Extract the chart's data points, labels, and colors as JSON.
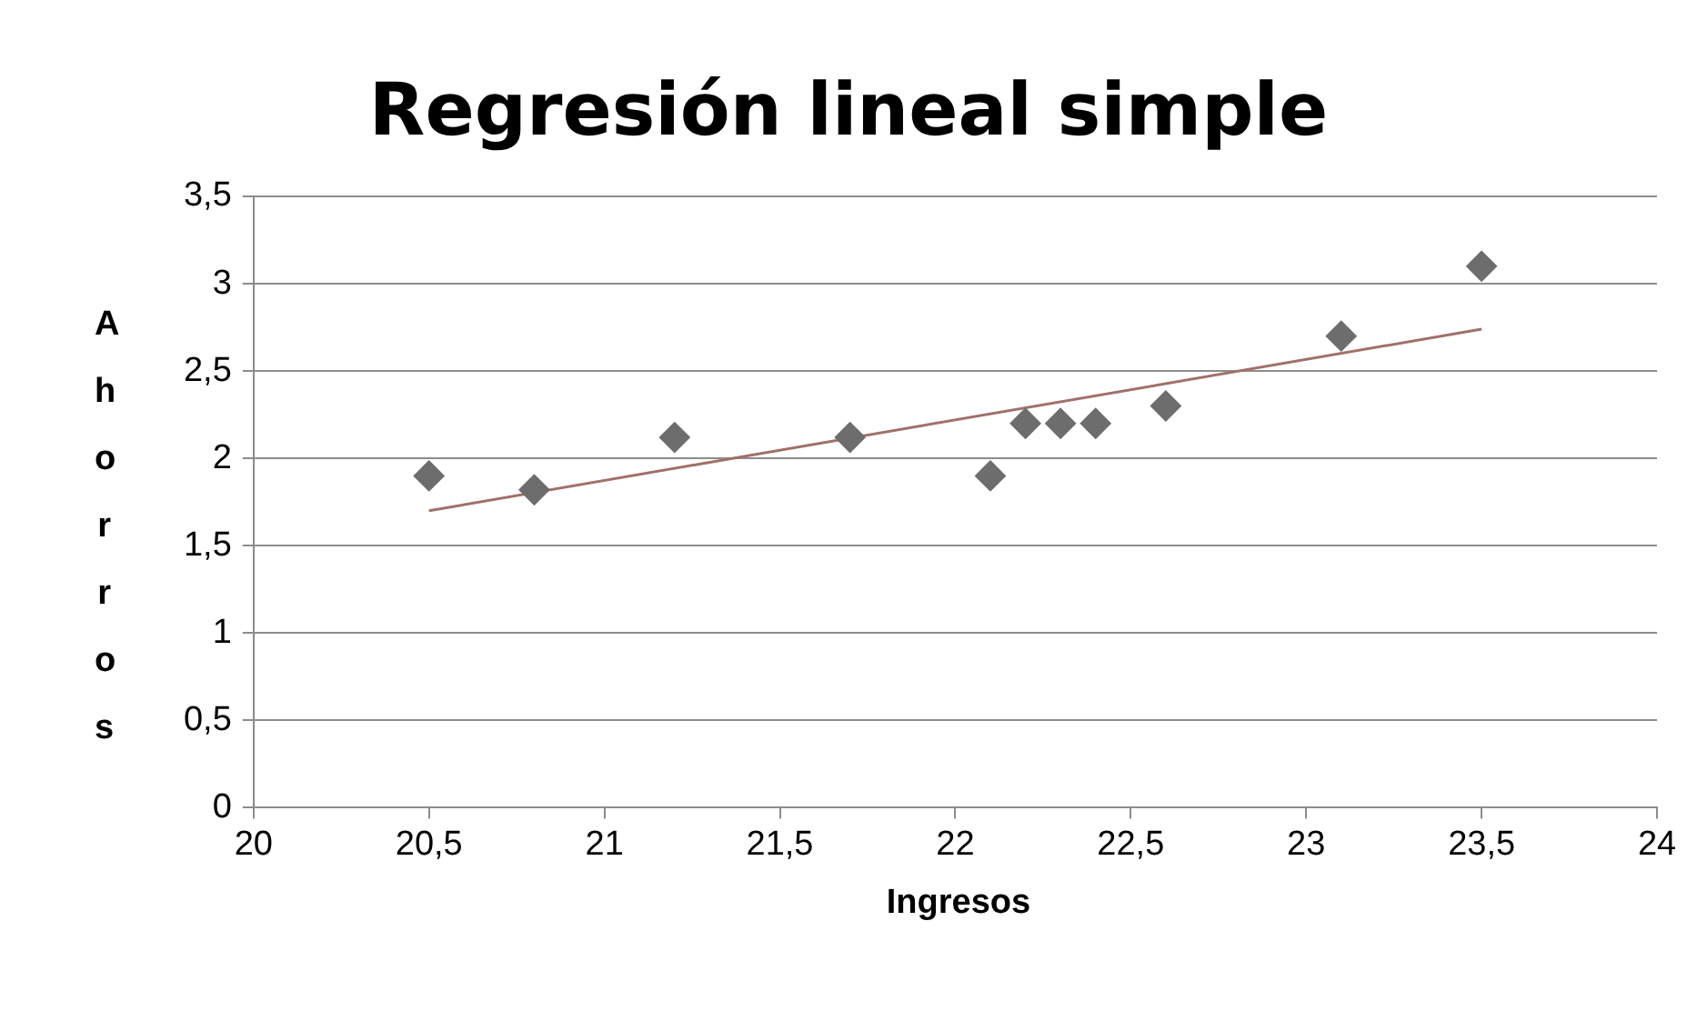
{
  "chart_data": {
    "type": "scatter",
    "title": "Regresión lineal simple",
    "xlabel": "Ingresos",
    "ylabel": "Ahorros",
    "x": [
      20.5,
      20.8,
      21.2,
      21.7,
      22.1,
      22.2,
      22.3,
      22.4,
      22.6,
      23.1,
      23.5
    ],
    "series": [
      {
        "color": "#6d6d6d",
        "values": [
          1.9,
          1.82,
          2.12,
          2.12,
          1.9,
          2.2,
          2.2,
          2.2,
          2.3,
          2.7,
          3.1
        ],
        "marker": "diamond"
      },
      {
        "type": "line",
        "color": "#a0706a",
        "x": [
          20.5,
          23.5
        ],
        "values": [
          1.7,
          2.74
        ],
        "marker": "none"
      }
    ],
    "xlim": [
      20,
      24
    ],
    "xticks": [
      20,
      {
        "value": 20.5,
        "label": "20,5"
      },
      21,
      {
        "value": 21.5,
        "label": "21,5"
      },
      22,
      {
        "value": 22.5,
        "label": "22,5"
      },
      23,
      {
        "value": 23.5,
        "label": "23,5"
      },
      24
    ],
    "ylim": [
      0,
      3.5
    ],
    "yticks": [
      0,
      {
        "value": 0.5,
        "label": "0,5"
      },
      1,
      {
        "value": 1.5,
        "label": "1,5"
      },
      2,
      {
        "value": 2.5,
        "label": "2,5"
      },
      3,
      {
        "value": 3.5,
        "label": "3,5"
      }
    ],
    "grid": "y",
    "legend": false
  }
}
